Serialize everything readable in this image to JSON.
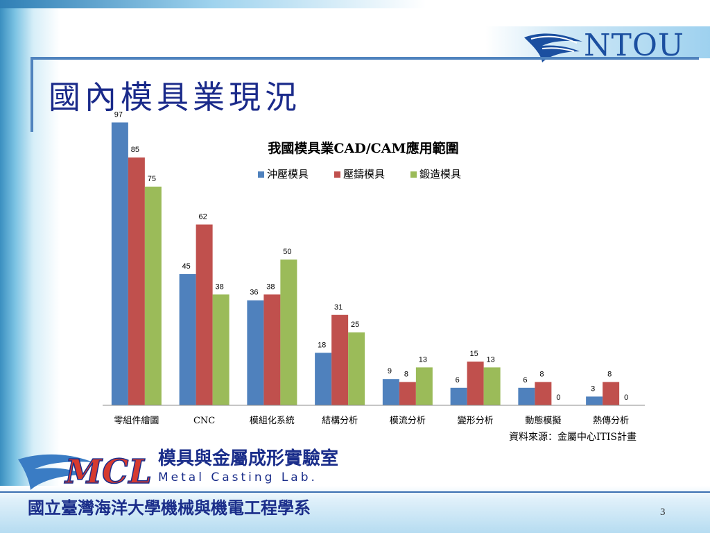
{
  "slide": {
    "title": "國內模具業現況",
    "page_number": "3"
  },
  "branding": {
    "ntou_text": "NTOU",
    "lab_name": "模具與金屬成形實驗室",
    "lab_name_en": "Metal Casting Lab.",
    "university": "國立臺灣海洋大學機械與機電工程學系"
  },
  "colors": {
    "series": [
      "#4f81bd",
      "#c0504d",
      "#9bbb59"
    ],
    "title": "#1a2a8a"
  },
  "chart_data": {
    "type": "bar",
    "title": "我國模具業CAD/CAM應用範圍",
    "source": "資料來源：金屬中心ITIS計畫",
    "legend_position": "top",
    "grid": false,
    "ylim": [
      0,
      100
    ],
    "categories": [
      "零組件繪圖",
      "CNC",
      "模組化系統",
      "結構分析",
      "模流分析",
      "變形分析",
      "動態模擬",
      "熱傳分析"
    ],
    "series": [
      {
        "name": "沖壓模具",
        "values": [
          97,
          45,
          36,
          18,
          9,
          6,
          6,
          3
        ]
      },
      {
        "name": "壓鑄模具",
        "values": [
          85,
          62,
          38,
          31,
          8,
          15,
          8,
          8
        ]
      },
      {
        "name": "鍛造模具",
        "values": [
          75,
          38,
          50,
          25,
          13,
          13,
          0,
          0
        ]
      }
    ]
  }
}
